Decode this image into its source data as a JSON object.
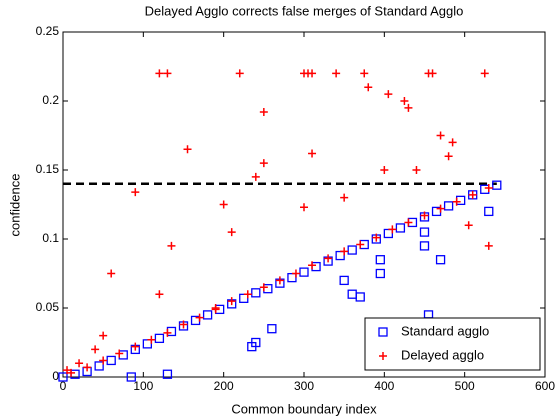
{
  "chart_data": {
    "type": "scatter",
    "title": "Delayed Agglo corrects false merges of Standard Agglo",
    "x_label": "Common boundary index",
    "y_label": "confidence",
    "xlim": [
      0,
      600
    ],
    "ylim": [
      0,
      0.25
    ],
    "xticks": [
      0,
      100,
      200,
      300,
      400,
      500,
      600
    ],
    "yticks": [
      0,
      0.05,
      0.1,
      0.15,
      0.2,
      0.25
    ],
    "legend_position": "lower right",
    "threshold": {
      "y": 0.14,
      "x": [
        0,
        540
      ],
      "color": "#000000"
    },
    "series": [
      {
        "name": "Standard agglo",
        "color": "#0000ff",
        "marker": "square",
        "x": [
          0,
          15,
          30,
          45,
          60,
          75,
          90,
          105,
          120,
          135,
          150,
          165,
          180,
          195,
          210,
          225,
          240,
          255,
          270,
          285,
          300,
          315,
          330,
          345,
          360,
          375,
          390,
          405,
          420,
          435,
          450,
          465,
          480,
          495,
          510,
          525,
          540,
          85,
          130,
          235,
          240,
          260,
          350,
          360,
          370,
          395,
          395,
          455,
          455,
          450,
          450,
          470,
          530
        ],
        "values": [
          0.0,
          0.002,
          0.004,
          0.008,
          0.012,
          0.016,
          0.02,
          0.024,
          0.028,
          0.033,
          0.037,
          0.041,
          0.045,
          0.049,
          0.053,
          0.057,
          0.061,
          0.064,
          0.068,
          0.072,
          0.076,
          0.08,
          0.084,
          0.088,
          0.092,
          0.096,
          0.1,
          0.104,
          0.108,
          0.112,
          0.116,
          0.12,
          0.124,
          0.128,
          0.132,
          0.136,
          0.139,
          0.0,
          0.002,
          0.022,
          0.025,
          0.035,
          0.07,
          0.06,
          0.058,
          0.075,
          0.085,
          0.04,
          0.045,
          0.095,
          0.105,
          0.085,
          0.12
        ]
      },
      {
        "name": "Delayed agglo",
        "color": "#ff0000",
        "marker": "plus",
        "x": [
          10,
          30,
          50,
          70,
          90,
          110,
          130,
          150,
          170,
          190,
          210,
          230,
          250,
          270,
          290,
          310,
          330,
          350,
          370,
          390,
          410,
          430,
          450,
          470,
          490,
          510,
          530,
          120,
          130,
          220,
          300,
          305,
          310,
          340,
          375,
          455,
          460,
          525,
          250,
          155,
          90,
          250,
          310,
          380,
          405,
          425,
          430,
          470,
          485,
          480,
          240,
          200,
          135,
          60,
          120,
          190,
          210,
          300,
          350,
          440,
          400,
          505,
          530,
          20,
          50,
          40,
          5
        ],
        "values": [
          0.003,
          0.007,
          0.012,
          0.017,
          0.022,
          0.027,
          0.032,
          0.038,
          0.043,
          0.049,
          0.055,
          0.06,
          0.065,
          0.07,
          0.075,
          0.081,
          0.086,
          0.091,
          0.096,
          0.101,
          0.107,
          0.112,
          0.117,
          0.122,
          0.127,
          0.132,
          0.137,
          0.22,
          0.22,
          0.22,
          0.22,
          0.22,
          0.22,
          0.22,
          0.22,
          0.22,
          0.22,
          0.22,
          0.192,
          0.165,
          0.134,
          0.155,
          0.162,
          0.21,
          0.205,
          0.2,
          0.195,
          0.175,
          0.17,
          0.16,
          0.145,
          0.125,
          0.095,
          0.075,
          0.06,
          0.05,
          0.105,
          0.123,
          0.13,
          0.15,
          0.15,
          0.11,
          0.095,
          0.01,
          0.03,
          0.02,
          0.005
        ]
      }
    ]
  }
}
